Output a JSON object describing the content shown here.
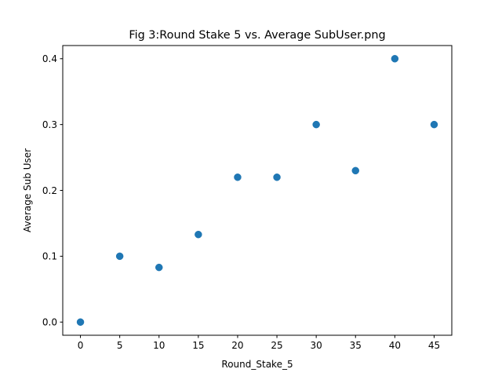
{
  "chart_data": {
    "type": "scatter",
    "title": "Fig 3:Round Stake 5 vs. Average SubUser.png",
    "xlabel": "Round_Stake_5",
    "ylabel": "Average Sub User",
    "xlim": [
      -2.25,
      47.25
    ],
    "ylim": [
      -0.02,
      0.42
    ],
    "xticks": [
      0,
      5,
      10,
      15,
      20,
      25,
      30,
      35,
      40,
      45
    ],
    "xtick_labels": [
      "0",
      "5",
      "10",
      "15",
      "20",
      "25",
      "30",
      "35",
      "40",
      "45"
    ],
    "yticks": [
      0.0,
      0.1,
      0.2,
      0.3,
      0.4
    ],
    "ytick_labels": [
      "0.0",
      "0.1",
      "0.2",
      "0.3",
      "0.4"
    ],
    "grid": false,
    "legend": "none",
    "marker_color": "#1f77b4",
    "points": [
      {
        "x": 0,
        "y": 0.0
      },
      {
        "x": 5,
        "y": 0.1
      },
      {
        "x": 10,
        "y": 0.083
      },
      {
        "x": 15,
        "y": 0.133
      },
      {
        "x": 20,
        "y": 0.22
      },
      {
        "x": 25,
        "y": 0.22
      },
      {
        "x": 30,
        "y": 0.3
      },
      {
        "x": 35,
        "y": 0.23
      },
      {
        "x": 40,
        "y": 0.4
      },
      {
        "x": 45,
        "y": 0.3
      }
    ]
  }
}
